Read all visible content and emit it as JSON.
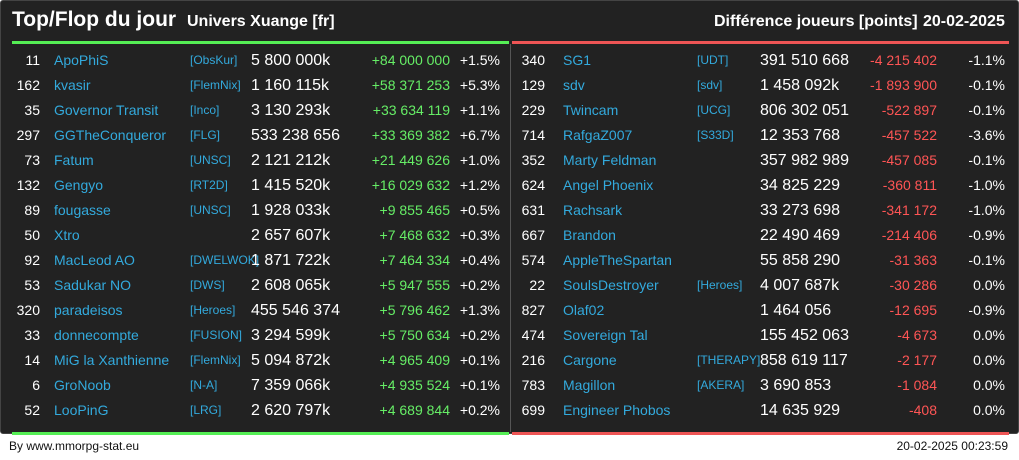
{
  "header": {
    "title": "Top/Flop du jour",
    "universe": "Univers Xuange [fr]",
    "metric": "Différence joueurs [points]",
    "date": "20-02-2025"
  },
  "colors": {
    "gain": "#66ee66",
    "loss": "#ff5555",
    "link": "#33aadd",
    "background": "#222222"
  },
  "top": [
    {
      "rank": "11",
      "name": "ApoPhiS",
      "tag": "[ObsKur]",
      "points": "5 800 000k",
      "diff": "+84 000 000",
      "pct": "+1.5%"
    },
    {
      "rank": "162",
      "name": "kvasir",
      "tag": "[FlemNix]",
      "points": "1 160 115k",
      "diff": "+58 371 253",
      "pct": "+5.3%"
    },
    {
      "rank": "35",
      "name": "Governor Transit",
      "tag": "[Inco]",
      "points": "3 130 293k",
      "diff": "+33 634 119",
      "pct": "+1.1%"
    },
    {
      "rank": "297",
      "name": "GGTheConqueror",
      "tag": "[FLG]",
      "points": "533 238 656",
      "diff": "+33 369 382",
      "pct": "+6.7%"
    },
    {
      "rank": "73",
      "name": "Fatum",
      "tag": "[UNSC]",
      "points": "2 121 212k",
      "diff": "+21 449 626",
      "pct": "+1.0%"
    },
    {
      "rank": "132",
      "name": "Gengyo",
      "tag": "[RT2D]",
      "points": "1 415 520k",
      "diff": "+16 029 632",
      "pct": "+1.2%"
    },
    {
      "rank": "89",
      "name": "fougasse",
      "tag": "[UNSC]",
      "points": "1 928 033k",
      "diff": "+9 855 465",
      "pct": "+0.5%"
    },
    {
      "rank": "50",
      "name": "Xtro",
      "tag": "",
      "points": "2 657 607k",
      "diff": "+7 468 632",
      "pct": "+0.3%"
    },
    {
      "rank": "92",
      "name": "MacLeod AO",
      "tag": "[DWELWOK]",
      "points": "1 871 722k",
      "diff": "+7 464 334",
      "pct": "+0.4%"
    },
    {
      "rank": "53",
      "name": "Sadukar NO",
      "tag": "[DWS]",
      "points": "2 608 065k",
      "diff": "+5 947 555",
      "pct": "+0.2%"
    },
    {
      "rank": "320",
      "name": "paradeisos",
      "tag": "[Heroes]",
      "points": "455 546 374",
      "diff": "+5 796 462",
      "pct": "+1.3%"
    },
    {
      "rank": "33",
      "name": "donnecompte",
      "tag": "[FUSION]",
      "points": "3 294 599k",
      "diff": "+5 750 634",
      "pct": "+0.2%"
    },
    {
      "rank": "14",
      "name": "MiG la Xanthienne",
      "tag": "[FlemNix]",
      "points": "5 094 872k",
      "diff": "+4 965 409",
      "pct": "+0.1%"
    },
    {
      "rank": "6",
      "name": "GroNoob",
      "tag": "[N-A]",
      "points": "7 359 066k",
      "diff": "+4 935 524",
      "pct": "+0.1%"
    },
    {
      "rank": "52",
      "name": "LooPinG",
      "tag": "[LRG]",
      "points": "2 620 797k",
      "diff": "+4 689 844",
      "pct": "+0.2%"
    }
  ],
  "flop": [
    {
      "rank": "340",
      "name": "SG1",
      "tag": "[UDT]",
      "points": "391 510 668",
      "diff": "-4 215 402",
      "pct": "-1.1%"
    },
    {
      "rank": "129",
      "name": "sdv",
      "tag": "[sdv]",
      "points": "1 458 092k",
      "diff": "-1 893 900",
      "pct": "-0.1%"
    },
    {
      "rank": "229",
      "name": "Twincam",
      "tag": "[UCG]",
      "points": "806 302 051",
      "diff": "-522 897",
      "pct": "-0.1%"
    },
    {
      "rank": "714",
      "name": "RafgaZ007",
      "tag": "[S33D]",
      "points": "12 353 768",
      "diff": "-457 522",
      "pct": "-3.6%"
    },
    {
      "rank": "352",
      "name": "Marty Feldman",
      "tag": "",
      "points": "357 982 989",
      "diff": "-457 085",
      "pct": "-0.1%"
    },
    {
      "rank": "624",
      "name": "Angel Phoenix",
      "tag": "",
      "points": "34 825 229",
      "diff": "-360 811",
      "pct": "-1.0%"
    },
    {
      "rank": "631",
      "name": "Rachsark",
      "tag": "",
      "points": "33 273 698",
      "diff": "-341 172",
      "pct": "-1.0%"
    },
    {
      "rank": "667",
      "name": "Brandon",
      "tag": "",
      "points": "22 490 469",
      "diff": "-214 406",
      "pct": "-0.9%"
    },
    {
      "rank": "574",
      "name": "AppleTheSpartan",
      "tag": "",
      "points": "55 858 290",
      "diff": "-31 363",
      "pct": "-0.1%"
    },
    {
      "rank": "22",
      "name": "SoulsDestroyer",
      "tag": "[Heroes]",
      "points": "4 007 687k",
      "diff": "-30 286",
      "pct": "0.0%"
    },
    {
      "rank": "827",
      "name": "Olaf02",
      "tag": "",
      "points": "1 464 056",
      "diff": "-12 695",
      "pct": "-0.9%"
    },
    {
      "rank": "474",
      "name": "Sovereign Tal",
      "tag": "",
      "points": "155 452 063",
      "diff": "-4 673",
      "pct": "0.0%"
    },
    {
      "rank": "216",
      "name": "Cargone",
      "tag": "[THERAPY]",
      "points": "858 619 117",
      "diff": "-2 177",
      "pct": "0.0%"
    },
    {
      "rank": "783",
      "name": "Magillon",
      "tag": "[AKERA]",
      "points": "3 690 853",
      "diff": "-1 084",
      "pct": "0.0%"
    },
    {
      "rank": "699",
      "name": "Engineer Phobos",
      "tag": "",
      "points": "14 635 929",
      "diff": "-408",
      "pct": "0.0%"
    }
  ],
  "footer": {
    "source": "By www.mmorpg-stat.eu",
    "timestamp": "20-02-2025 00:23:59"
  }
}
